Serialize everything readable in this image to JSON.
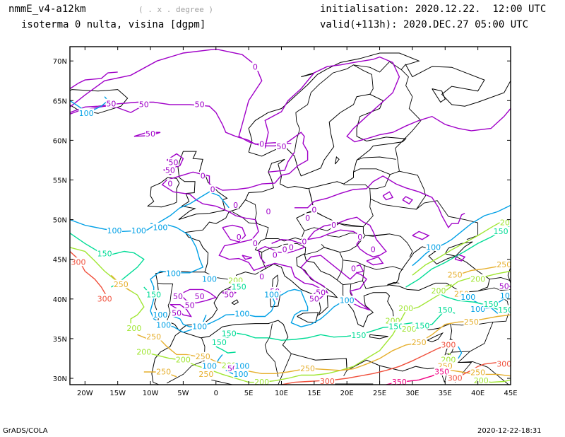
{
  "header": {
    "model": "nmmE_v4-a12km",
    "units": "( . x . degree )",
    "field": "isoterma 0 nulta, visina [dgpm]",
    "init": "initialisation: 2020.12.22.  12:00 UTC",
    "valid": "valid(+113h): 2020.DEC.27 05:00 UTC"
  },
  "footer": {
    "left": "GrADS/COLA",
    "right": "2020-12-22-18:31"
  },
  "axes": {
    "lon_labels": [
      "20W",
      "15W",
      "10W",
      "5W",
      "0",
      "5E",
      "10E",
      "15E",
      "20E",
      "25E",
      "30E",
      "35E",
      "40E",
      "45E"
    ],
    "lat_labels": [
      "70N",
      "65N",
      "60N",
      "55N",
      "50N",
      "45N",
      "40N",
      "35N",
      "30N"
    ]
  },
  "contour_colors": {
    "0": "#a000c8",
    "50": "#a000c8",
    "100": "#00a0e6",
    "150": "#00dc96",
    "200": "#a0e632",
    "250": "#e6af2d",
    "300": "#f0503c",
    "350": "#f00082"
  },
  "contour_labels": [
    {
      "v": "0",
      "lon": 6,
      "lat": 69.2
    },
    {
      "v": "50",
      "lon": -11,
      "lat": 64.5
    },
    {
      "v": "50",
      "lon": -16,
      "lat": 64.6
    },
    {
      "v": "100",
      "lon": -19.8,
      "lat": 63.4
    },
    {
      "v": "50",
      "lon": -2.5,
      "lat": 64.5
    },
    {
      "v": "50",
      "lon": -10,
      "lat": 60.8
    },
    {
      "v": "0",
      "lon": 7,
      "lat": 59.5
    },
    {
      "v": "50",
      "lon": 10,
      "lat": 59.2
    },
    {
      "v": "50",
      "lon": -6.5,
      "lat": 57.2
    },
    {
      "v": "50",
      "lon": -7,
      "lat": 56.2
    },
    {
      "v": "0",
      "lon": -7,
      "lat": 54.5
    },
    {
      "v": "0",
      "lon": -2,
      "lat": 55.5
    },
    {
      "v": "0",
      "lon": -0.5,
      "lat": 53.8
    },
    {
      "v": "0",
      "lon": 3,
      "lat": 51.8
    },
    {
      "v": "0",
      "lon": 8,
      "lat": 51
    },
    {
      "v": "0",
      "lon": 15,
      "lat": 51.2
    },
    {
      "v": "0",
      "lon": 14,
      "lat": 50.2
    },
    {
      "v": "0",
      "lon": 18,
      "lat": 49.3
    },
    {
      "v": "0",
      "lon": 22,
      "lat": 47.8
    },
    {
      "v": "0",
      "lon": 24,
      "lat": 46.2
    },
    {
      "v": "0",
      "lon": 3.5,
      "lat": 47.8
    },
    {
      "v": "0",
      "lon": 6,
      "lat": 47
    },
    {
      "v": "0",
      "lon": 11.5,
      "lat": 46.5
    },
    {
      "v": "0",
      "lon": 13.5,
      "lat": 47.2
    },
    {
      "v": "0",
      "lon": 9,
      "lat": 45.5
    },
    {
      "v": "0",
      "lon": 10.5,
      "lat": 46.2
    },
    {
      "v": "0",
      "lon": 21,
      "lat": 43.8
    },
    {
      "v": "0",
      "lon": 7,
      "lat": 42.8
    },
    {
      "v": "50",
      "lon": 9,
      "lat": 40.9
    },
    {
      "v": "50",
      "lon": 16,
      "lat": 40.8
    },
    {
      "v": "50",
      "lon": 15,
      "lat": 40
    },
    {
      "v": "50",
      "lon": 2,
      "lat": 40.5
    },
    {
      "v": "50",
      "lon": -2.5,
      "lat": 40.3
    },
    {
      "v": "50",
      "lon": -5.8,
      "lat": 40.3
    },
    {
      "v": "50",
      "lon": -4,
      "lat": 39.2
    },
    {
      "v": "50",
      "lon": -6,
      "lat": 38.2
    },
    {
      "v": "100",
      "lon": -8.5,
      "lat": 49
    },
    {
      "v": "100",
      "lon": -15.5,
      "lat": 48.6
    },
    {
      "v": "100",
      "lon": -11.8,
      "lat": 48.6
    },
    {
      "v": "150",
      "lon": -17,
      "lat": 45.7
    },
    {
      "v": "300",
      "lon": -21,
      "lat": 44.6
    },
    {
      "v": "250",
      "lon": -14.5,
      "lat": 41.8
    },
    {
      "v": "300",
      "lon": -17,
      "lat": 40
    },
    {
      "v": "100",
      "lon": -6.5,
      "lat": 43.2
    },
    {
      "v": "100",
      "lon": -1,
      "lat": 42.5
    },
    {
      "v": "200",
      "lon": 3,
      "lat": 42.3
    },
    {
      "v": "150",
      "lon": 3.5,
      "lat": 41.5
    },
    {
      "v": "150",
      "lon": -9.5,
      "lat": 40.5
    },
    {
      "v": "100",
      "lon": 4,
      "lat": 38.1
    },
    {
      "v": "100",
      "lon": 8.5,
      "lat": 40.5
    },
    {
      "v": "100",
      "lon": 20,
      "lat": 39.8
    },
    {
      "v": "100",
      "lon": -8.5,
      "lat": 38
    },
    {
      "v": "100",
      "lon": -8,
      "lat": 36.7
    },
    {
      "v": "100",
      "lon": -2.5,
      "lat": 36.5
    },
    {
      "v": "250",
      "lon": -9.5,
      "lat": 35.2
    },
    {
      "v": "200",
      "lon": -11,
      "lat": 33.3
    },
    {
      "v": "150",
      "lon": 2,
      "lat": 35.6
    },
    {
      "v": "150",
      "lon": 0.5,
      "lat": 34.5
    },
    {
      "v": "200",
      "lon": -5,
      "lat": 32.3
    },
    {
      "v": "250",
      "lon": -2,
      "lat": 32.7
    },
    {
      "v": "100",
      "lon": -1,
      "lat": 31.5
    },
    {
      "v": "200",
      "lon": 2,
      "lat": 31.6
    },
    {
      "v": "50",
      "lon": 2.5,
      "lat": 31.2
    },
    {
      "v": "100",
      "lon": 4,
      "lat": 31.5
    },
    {
      "v": "100",
      "lon": 3.8,
      "lat": 30.5
    },
    {
      "v": "250",
      "lon": -8,
      "lat": 30.8
    },
    {
      "v": "250",
      "lon": -1.5,
      "lat": 30.5
    },
    {
      "v": "150",
      "lon": 21.8,
      "lat": 35.4
    },
    {
      "v": "200",
      "lon": 7,
      "lat": 29.5
    },
    {
      "v": "250",
      "lon": 14,
      "lat": 31.2
    },
    {
      "v": "200",
      "lon": -12.5,
      "lat": 36.3
    },
    {
      "v": "300",
      "lon": 17,
      "lat": 29.6
    },
    {
      "v": "350",
      "lon": 28,
      "lat": 29.5
    },
    {
      "v": "100",
      "lon": 33.2,
      "lat": 46.5
    },
    {
      "v": "150",
      "lon": 43.5,
      "lat": 48.5
    },
    {
      "v": "200",
      "lon": 44.5,
      "lat": 49.6
    },
    {
      "v": "250",
      "lon": 44,
      "lat": 44.3
    },
    {
      "v": "250",
      "lon": 36.5,
      "lat": 43
    },
    {
      "v": "200",
      "lon": 40,
      "lat": 42.5
    },
    {
      "v": "250",
      "lon": 37.5,
      "lat": 40.6
    },
    {
      "v": "200",
      "lon": 34,
      "lat": 41
    },
    {
      "v": "200",
      "lon": 29,
      "lat": 38.8
    },
    {
      "v": "150",
      "lon": 35,
      "lat": 38.6
    },
    {
      "v": "100",
      "lon": 40,
      "lat": 38.7
    },
    {
      "v": "250",
      "lon": 39,
      "lat": 37.1
    },
    {
      "v": "200",
      "lon": 27,
      "lat": 37.2
    },
    {
      "v": "150",
      "lon": 27.5,
      "lat": 36.5
    },
    {
      "v": "200",
      "lon": 29.5,
      "lat": 36.2
    },
    {
      "v": "150",
      "lon": 31.5,
      "lat": 36.6
    },
    {
      "v": "250",
      "lon": 31,
      "lat": 34.5
    },
    {
      "v": "300",
      "lon": 35.5,
      "lat": 34.2
    },
    {
      "v": "200",
      "lon": 35.5,
      "lat": 32.3
    },
    {
      "v": "250",
      "lon": 35,
      "lat": 31.5
    },
    {
      "v": "350",
      "lon": 34.5,
      "lat": 30.8
    },
    {
      "v": "300",
      "lon": 36.5,
      "lat": 30
    },
    {
      "v": "250",
      "lon": 40,
      "lat": 30.7
    },
    {
      "v": "200",
      "lon": 40.5,
      "lat": 29.7
    },
    {
      "v": "300",
      "lon": 44,
      "lat": 31.8
    },
    {
      "v": "100",
      "lon": 44.5,
      "lat": 40.4
    },
    {
      "v": "150",
      "lon": 44.2,
      "lat": 38.6
    },
    {
      "v": "150",
      "lon": 42,
      "lat": 39.3
    },
    {
      "v": "50",
      "lon": 44,
      "lat": 41.6
    },
    {
      "v": "100",
      "lon": 38.5,
      "lat": 40.2
    }
  ]
}
